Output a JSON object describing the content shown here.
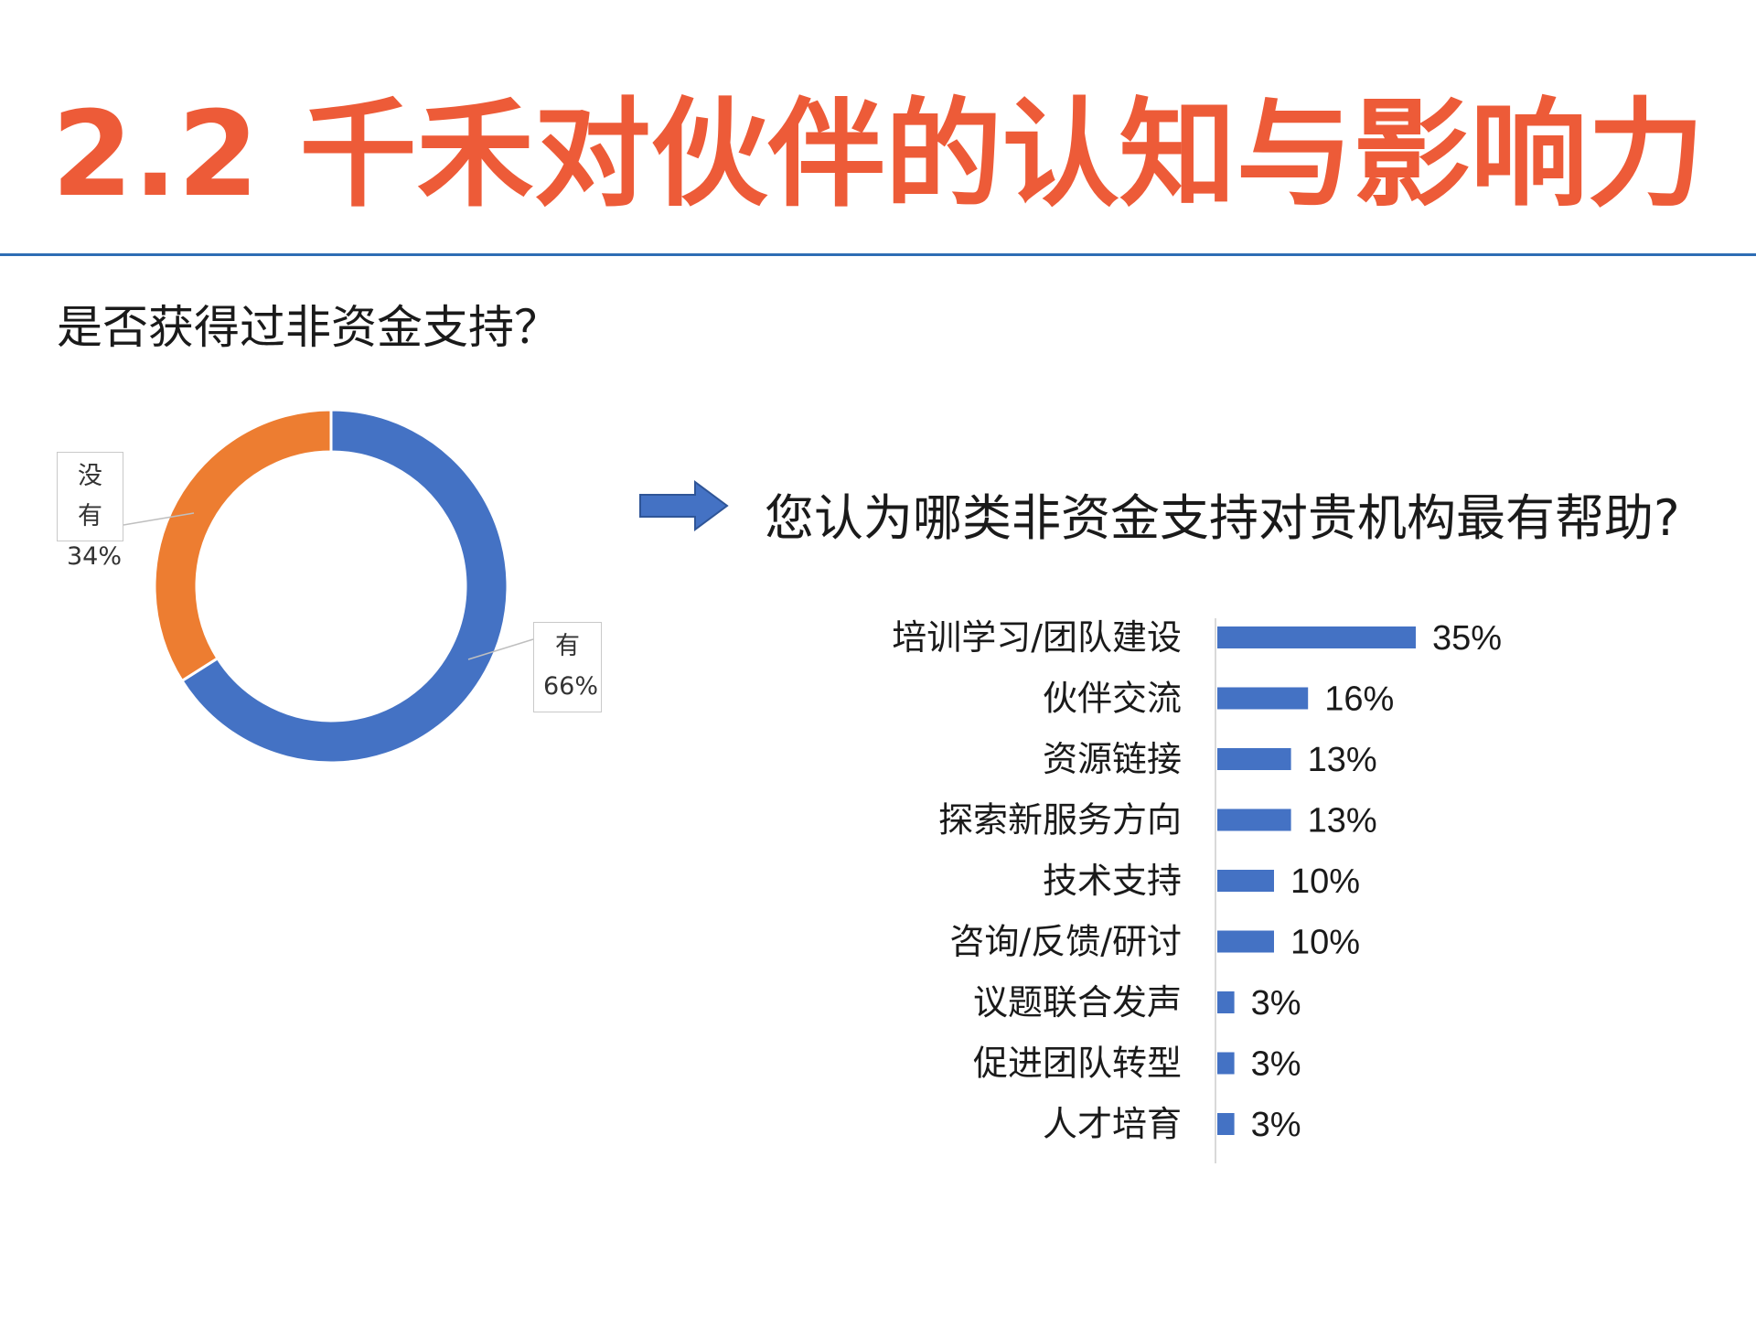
{
  "title": "2.2 千禾对伙伴的认知与影响力",
  "question_left": "是否获得过非资金支持？",
  "question_right": "您认为哪类非资金支持对贵机构最有帮助?",
  "colors": {
    "title": "#ED5B38",
    "rule": "#2E6DB4",
    "bar": "#4472C4",
    "donut_yes": "#4472C4",
    "donut_no": "#ED7D31",
    "arrow": "#4472C4"
  },
  "icons": {
    "arrow": "right-arrow-icon"
  },
  "chart_data": [
    {
      "type": "pie",
      "variant": "donut",
      "slices": [
        {
          "label": "有",
          "value": 66,
          "value_label": "66%",
          "color": "#4472C4"
        },
        {
          "label": "没有",
          "value": 34,
          "value_label": "34%",
          "color": "#ED7D31"
        }
      ]
    },
    {
      "type": "bar",
      "orientation": "horizontal",
      "categories": [
        "培训学习/团队建设",
        "伙伴交流",
        "资源链接",
        "探索新服务方向",
        "技术支持",
        "咨询/反馈/研讨",
        "议题联合发声",
        "促进团队转型",
        "人才培育"
      ],
      "values": [
        35,
        16,
        13,
        13,
        10,
        10,
        3,
        3,
        3
      ],
      "value_labels": [
        "35%",
        "16%",
        "13%",
        "13%",
        "10%",
        "10%",
        "3%",
        "3%",
        "3%"
      ],
      "grid": false
    }
  ]
}
